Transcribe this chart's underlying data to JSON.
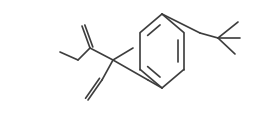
{
  "bg_color": "#ffffff",
  "line_color": "#3d3d3d",
  "line_width": 1.2,
  "figsize": [
    2.54,
    1.22
  ],
  "dpi": 100,
  "xlim": [
    0,
    254
  ],
  "ylim": [
    0,
    122
  ]
}
